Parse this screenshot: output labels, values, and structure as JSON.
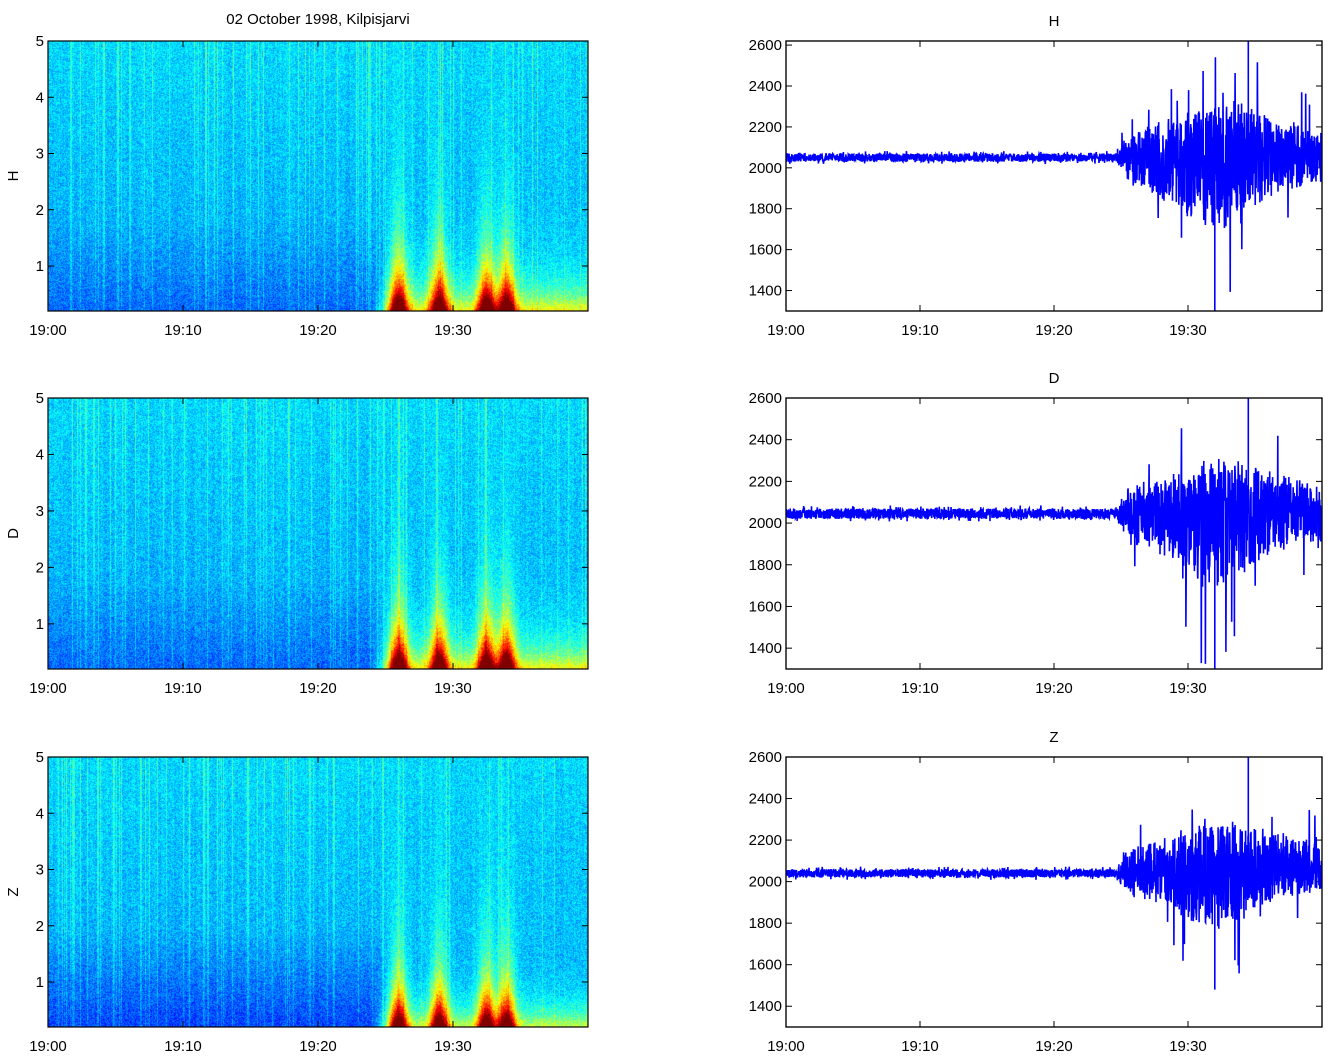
{
  "figure": {
    "title": "02 October 1998, Kilpisjarvi"
  },
  "chart_data": [
    {
      "type": "heatmap",
      "panel": "spectrogram",
      "component": "H",
      "ylabel": "H",
      "xlabel": "",
      "x_ticks": [
        "19:00",
        "19:10",
        "19:20",
        "19:30"
      ],
      "x_tick_minutes": [
        0,
        10,
        20,
        30
      ],
      "xlim_minutes": [
        0,
        40
      ],
      "y_ticks": [
        1,
        2,
        3,
        4,
        5
      ],
      "ylim": [
        0.2,
        5
      ],
      "colormap": "jet",
      "activity_onset_minute": 25,
      "burst_minutes": [
        26,
        29,
        32.5,
        34
      ]
    },
    {
      "type": "heatmap",
      "panel": "spectrogram",
      "component": "D",
      "ylabel": "D",
      "xlabel": "",
      "x_ticks": [
        "19:00",
        "19:10",
        "19:20",
        "19:30"
      ],
      "x_tick_minutes": [
        0,
        10,
        20,
        30
      ],
      "xlim_minutes": [
        0,
        40
      ],
      "y_ticks": [
        1,
        2,
        3,
        4,
        5
      ],
      "ylim": [
        0.2,
        5
      ],
      "colormap": "jet",
      "activity_onset_minute": 25,
      "burst_minutes": [
        26,
        29,
        32.5,
        34
      ]
    },
    {
      "type": "heatmap",
      "panel": "spectrogram",
      "component": "Z",
      "ylabel": "Z",
      "xlabel": "",
      "x_ticks": [
        "19:00",
        "19:10",
        "19:20",
        "19:30"
      ],
      "x_tick_minutes": [
        0,
        10,
        20,
        30
      ],
      "xlim_minutes": [
        0,
        40
      ],
      "y_ticks": [
        1,
        2,
        3,
        4,
        5
      ],
      "ylim": [
        0.2,
        5
      ],
      "colormap": "jet",
      "activity_onset_minute": 25,
      "burst_minutes": [
        26,
        29,
        32.5,
        34
      ]
    },
    {
      "type": "line",
      "panel": "timeseries",
      "component": "H",
      "title": "H",
      "x_ticks": [
        "19:00",
        "19:10",
        "19:20",
        "19:30"
      ],
      "x_tick_minutes": [
        0,
        10,
        20,
        30
      ],
      "xlim_minutes": [
        0,
        40
      ],
      "y_ticks": [
        1400,
        1600,
        1800,
        2000,
        2200,
        2400,
        2600
      ],
      "ylim": [
        1300,
        2620
      ],
      "line_color": "#0000ff",
      "baseline": 2050,
      "quiet_noise_amplitude": 20,
      "activity_onset_minute": 25,
      "active_peak_to_peak": [
        1300,
        2620
      ],
      "max_value": 2620,
      "min_value": 1300
    },
    {
      "type": "line",
      "panel": "timeseries",
      "component": "D",
      "title": "D",
      "x_ticks": [
        "19:00",
        "19:10",
        "19:20",
        "19:30"
      ],
      "x_tick_minutes": [
        0,
        10,
        20,
        30
      ],
      "xlim_minutes": [
        0,
        40
      ],
      "y_ticks": [
        1400,
        1600,
        1800,
        2000,
        2200,
        2400,
        2600
      ],
      "ylim": [
        1300,
        2600
      ],
      "line_color": "#0000ff",
      "baseline": 2045,
      "quiet_noise_amplitude": 25,
      "activity_onset_minute": 25,
      "active_peak_to_peak": [
        1300,
        2600
      ],
      "max_value": 2600,
      "min_value": 1300
    },
    {
      "type": "line",
      "panel": "timeseries",
      "component": "Z",
      "title": "Z",
      "x_ticks": [
        "19:00",
        "19:10",
        "19:20",
        "19:30"
      ],
      "x_tick_minutes": [
        0,
        10,
        20,
        30
      ],
      "xlim_minutes": [
        0,
        40
      ],
      "y_ticks": [
        1400,
        1600,
        1800,
        2000,
        2200,
        2400,
        2600
      ],
      "ylim": [
        1300,
        2600
      ],
      "line_color": "#0000ff",
      "baseline": 2040,
      "quiet_noise_amplitude": 20,
      "activity_onset_minute": 25,
      "active_peak_to_peak": [
        1480,
        2600
      ],
      "max_value": 2600,
      "min_value": 1480
    }
  ]
}
